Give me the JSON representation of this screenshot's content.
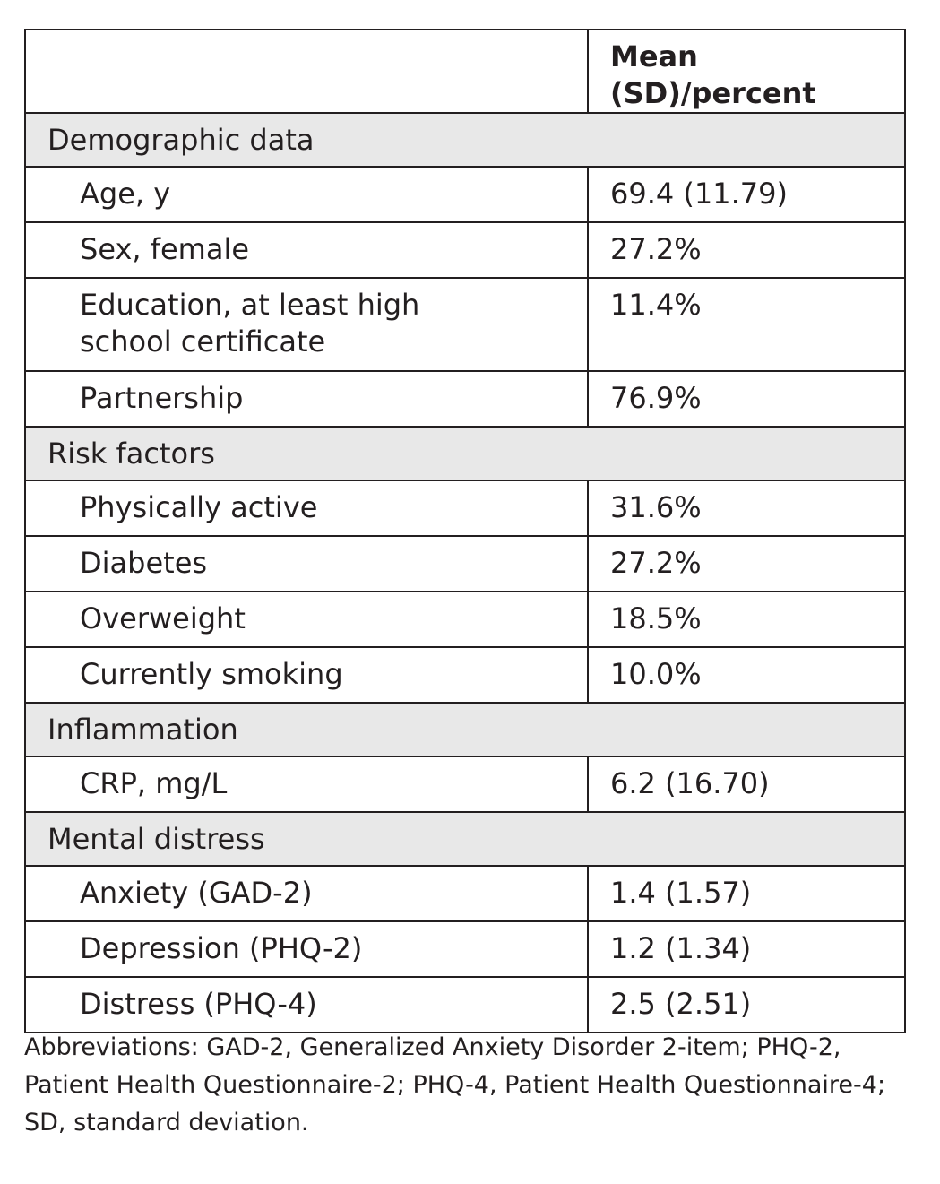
{
  "table": {
    "header": {
      "label": "",
      "value": "Mean (SD)/percent"
    },
    "sections": [
      {
        "title": "Demographic data",
        "rows": [
          {
            "label": "Age, y",
            "value": "69.4 (11.79)"
          },
          {
            "label": "Sex, female",
            "value": "27.2%"
          },
          {
            "label": "Education, at least high\nschool certificate",
            "value": "11.4%"
          },
          {
            "label": "Partnership",
            "value": "76.9%"
          }
        ]
      },
      {
        "title": "Risk factors",
        "rows": [
          {
            "label": "Physically active",
            "value": "31.6%"
          },
          {
            "label": "Diabetes",
            "value": "27.2%"
          },
          {
            "label": "Overweight",
            "value": "18.5%"
          },
          {
            "label": "Currently smoking",
            "value": "10.0%"
          }
        ]
      },
      {
        "title": "Inflammation",
        "rows": [
          {
            "label": "CRP, mg/L",
            "value": "6.2 (16.70)"
          }
        ]
      },
      {
        "title": "Mental distress",
        "rows": [
          {
            "label": "Anxiety (GAD-2)",
            "value": "1.4 (1.57)"
          },
          {
            "label": "Depression (PHQ-2)",
            "value": "1.2 (1.34)"
          },
          {
            "label": "Distress (PHQ-4)",
            "value": "2.5 (2.51)"
          }
        ]
      }
    ]
  },
  "footnote": {
    "lines": [
      "Abbreviations: GAD-2, Generalized Anxiety Disorder 2-item; PHQ-2,",
      "Patient Health Questionnaire-2; PHQ-4, Patient Health Questionnaire-4;",
      "SD, standard deviation."
    ]
  }
}
